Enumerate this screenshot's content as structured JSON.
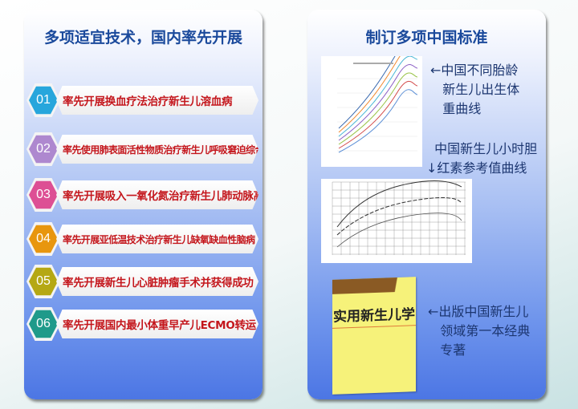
{
  "left_panel": {
    "title": "多项适宜技术，国内率先开展",
    "items": [
      {
        "number": "01",
        "label": "率先开展换血疗法治疗新生儿溶血病",
        "color": "#27a6dc"
      },
      {
        "number": "02",
        "label": "率先使用肺表面活性物质治疗新生儿呼吸窘迫综合征",
        "color": "#ae88cf"
      },
      {
        "number": "03",
        "label": "率先开展吸入一氧化氮治疗新生儿肺动脉高压",
        "color": "#dd4f94"
      },
      {
        "number": "04",
        "label": "率先开展亚低温技术治疗新生儿缺氧缺血性脑病",
        "color": "#e8960e"
      },
      {
        "number": "05",
        "label": "率先开展新生儿心脏肿瘤手术并获得成功",
        "color": "#b5a814"
      },
      {
        "number": "06",
        "label": "率先开展国内最小体重早产儿ECMO转运",
        "color": "#1f9a8a"
      }
    ]
  },
  "right_panel": {
    "title": "制订多项中国标准",
    "note1": "←中国不同胎龄\n   新生儿出生体\n   重曲线",
    "note2": "  中国新生儿小时胆\n↓红素参考值曲线",
    "note3": "←出版中国新生儿\n   领域第一本经典\n   专著",
    "book_title": "实用新生儿学"
  }
}
